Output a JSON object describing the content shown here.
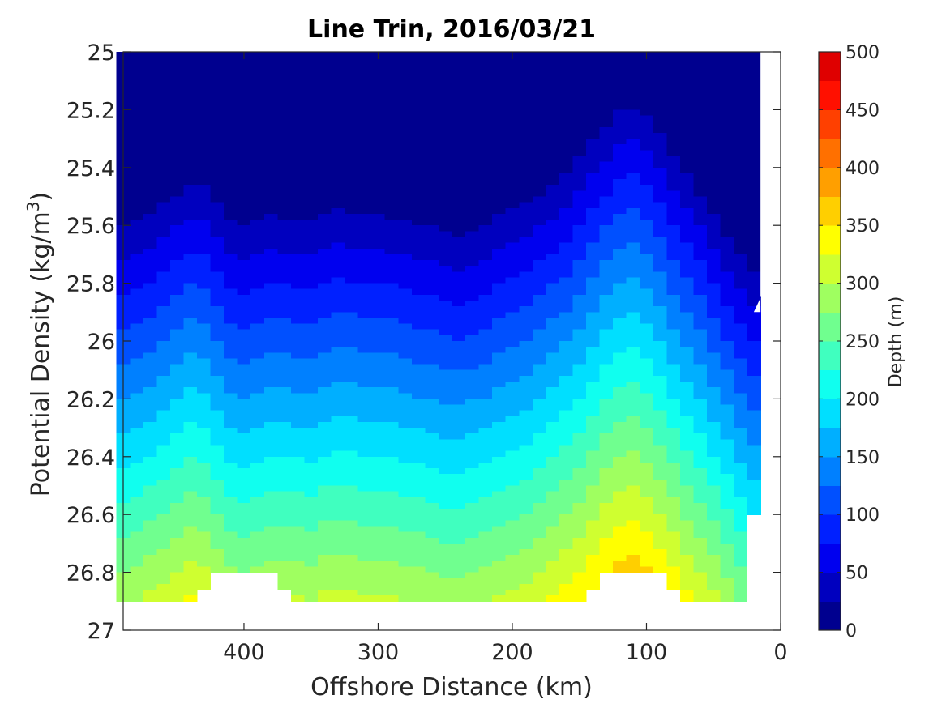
{
  "chart_data": {
    "type": "heatmap",
    "subtype": "filled-contour",
    "title": "Line Trin, 2016/03/21",
    "xlabel": "Offshore Distance (km)",
    "ylabel_main": "Potential Density (kg/m",
    "ylabel_sup": "3",
    "ylabel_tail": ")",
    "xlim": [
      490,
      0
    ],
    "ylim": [
      25,
      27
    ],
    "x_direction": "reversed",
    "y_direction": "reversed",
    "xticks": [
      400,
      300,
      200,
      100,
      0
    ],
    "xtick_labels": [
      "400",
      "300",
      "200",
      "100",
      "0"
    ],
    "yticks": [
      25,
      25.2,
      25.4,
      25.6,
      25.8,
      26,
      26.2,
      26.4,
      26.6,
      26.8,
      27
    ],
    "ytick_labels": [
      "25",
      "25.2",
      "25.4",
      "25.6",
      "25.8",
      "26",
      "26.2",
      "26.4",
      "26.6",
      "26.8",
      "27"
    ],
    "colorbar": {
      "label": "Depth (m)",
      "range": [
        0,
        500
      ],
      "levels_step": 25,
      "ticks": [
        0,
        50,
        100,
        150,
        200,
        250,
        300,
        350,
        400,
        450,
        500
      ],
      "tick_labels": [
        "0",
        "50",
        "100",
        "150",
        "200",
        "250",
        "300",
        "350",
        "400",
        "450",
        "500"
      ],
      "colormap": "jet",
      "colors": [
        "#00008f",
        "#0000bf",
        "#0000ef",
        "#0020ff",
        "#0050ff",
        "#0080ff",
        "#00afff",
        "#00dfff",
        "#10ffef",
        "#40ffbf",
        "#70ff8f",
        "#9fff60",
        "#cfff30",
        "#ffff00",
        "#ffcf00",
        "#ff9f00",
        "#ff7000",
        "#ff4000",
        "#ff1000",
        "#df0000",
        "#af0000"
      ]
    },
    "x": [
      490,
      480,
      470,
      460,
      450,
      440,
      430,
      420,
      410,
      400,
      390,
      380,
      370,
      360,
      350,
      340,
      330,
      320,
      310,
      300,
      290,
      280,
      270,
      260,
      250,
      240,
      230,
      220,
      210,
      200,
      190,
      180,
      170,
      160,
      150,
      140,
      130,
      120,
      110,
      100,
      90,
      80,
      70,
      60,
      50,
      40,
      30,
      20
    ],
    "depth_at_26": [
      108,
      112,
      118,
      125,
      132,
      140,
      138,
      124,
      112,
      108,
      112,
      116,
      115,
      114,
      113,
      118,
      120,
      119,
      117,
      116,
      115,
      112,
      110,
      108,
      104,
      102,
      106,
      110,
      116,
      120,
      124,
      132,
      140,
      148,
      158,
      170,
      182,
      192,
      195,
      187,
      175,
      160,
      146,
      132,
      118,
      102,
      88,
      74
    ],
    "depth_gradient_m_per_sigma": 210,
    "max_density_at_depth": [
      26.9,
      26.9,
      26.9,
      26.9,
      26.9,
      26.9,
      26.86,
      26.8,
      26.8,
      26.8,
      26.8,
      26.8,
      26.86,
      26.9,
      26.9,
      26.9,
      26.9,
      26.9,
      26.9,
      26.9,
      26.9,
      26.9,
      26.9,
      26.9,
      26.9,
      26.9,
      26.9,
      26.9,
      26.9,
      26.9,
      26.9,
      26.9,
      26.9,
      26.9,
      26.9,
      26.86,
      26.8,
      26.8,
      26.8,
      26.8,
      26.8,
      26.86,
      26.9,
      26.9,
      26.9,
      26.9,
      26.9,
      26.6
    ],
    "min_density_nearshore": [
      [
        20,
        25.9
      ],
      [
        10,
        25.8
      ]
    ]
  }
}
